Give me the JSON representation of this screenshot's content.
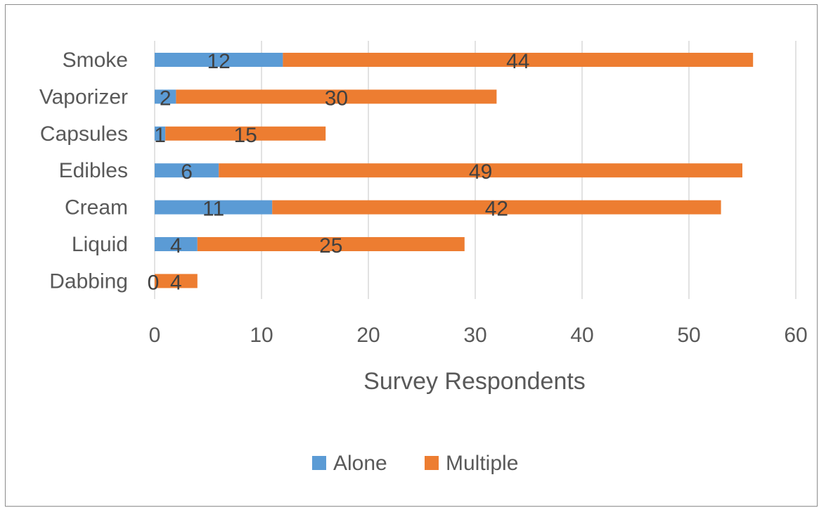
{
  "chart_data": {
    "type": "bar",
    "orientation": "horizontal",
    "stacked": true,
    "categories": [
      "Smoke",
      "Vaporizer",
      "Capsules",
      "Edibles",
      "Cream",
      "Liquid",
      "Dabbing"
    ],
    "series": [
      {
        "name": "Alone",
        "values": [
          12,
          2,
          1,
          6,
          11,
          4,
          0
        ],
        "color": "#5b9bd5"
      },
      {
        "name": "Multiple",
        "values": [
          44,
          30,
          15,
          49,
          42,
          25,
          4
        ],
        "color": "#ed7d31"
      }
    ],
    "title": "",
    "xlabel": "Survey Respondents",
    "ylabel": "",
    "xlim": [
      0,
      60
    ],
    "xticks": [
      "0",
      "10",
      "20",
      "30",
      "40",
      "50",
      "60"
    ],
    "grid": true,
    "legend": "bottom",
    "data_labels": true
  }
}
